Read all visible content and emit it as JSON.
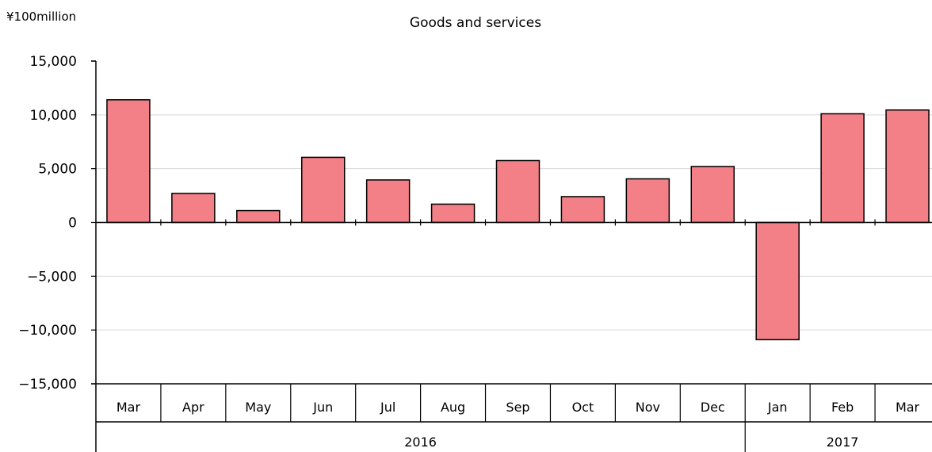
{
  "chart_data": {
    "type": "bar",
    "title": "Goods and services",
    "unit_label": "¥100million",
    "categories": [
      "Mar",
      "Apr",
      "May",
      "Jun",
      "Jul",
      "Aug",
      "Sep",
      "Oct",
      "Nov",
      "Dec",
      "Jan",
      "Feb",
      "Mar"
    ],
    "year_groups": [
      {
        "label": "2016",
        "count": 10
      },
      {
        "label": "2017",
        "count": 3
      }
    ],
    "values": [
      11400,
      2700,
      1100,
      6050,
      3950,
      1700,
      5750,
      2400,
      4050,
      5200,
      -10900,
      10100,
      10450
    ],
    "ylim": [
      -15000,
      15000
    ],
    "yticks": [
      15000,
      10000,
      5000,
      0,
      -5000,
      -10000,
      -15000
    ],
    "ytick_labels": [
      "15,000",
      "10,000",
      "5,000",
      "0",
      "−5,000",
      "−10,000",
      "−15,000"
    ],
    "bar_color": "#f28086",
    "grid": true,
    "legend": "none"
  }
}
